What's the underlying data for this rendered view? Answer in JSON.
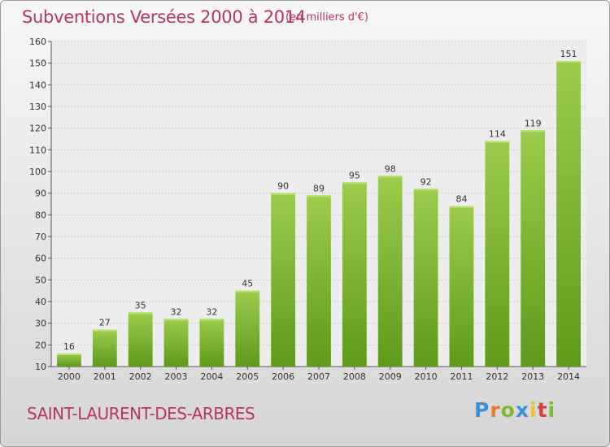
{
  "header": {
    "title": "Subventions Versées 2000 à 2014",
    "subtitle": "(en milliers d'€)"
  },
  "footer": {
    "place": "SAINT-LAURENT-DES-ARBRES",
    "logo": "Proxiti"
  },
  "chart_data": {
    "type": "bar",
    "title": "Subventions Versées 2000 à 2014",
    "subtitle": "(en milliers d'€)",
    "categories": [
      "2000",
      "2001",
      "2002",
      "2003",
      "2004",
      "2005",
      "2006",
      "2007",
      "2008",
      "2009",
      "2010",
      "2011",
      "2012",
      "2013",
      "2014"
    ],
    "values": [
      16,
      27,
      35,
      32,
      32,
      45,
      90,
      89,
      95,
      98,
      92,
      84,
      114,
      119,
      151
    ],
    "ylim": [
      10,
      160
    ],
    "yticks": [
      10,
      20,
      30,
      40,
      50,
      60,
      70,
      80,
      90,
      100,
      110,
      120,
      130,
      140,
      150,
      160
    ],
    "grid": true,
    "colors": {
      "bar_light": "#9ccc4c",
      "bar_dark": "#5f9a1a",
      "grid": "#cfcfcf",
      "accent": "#b7365c"
    }
  }
}
